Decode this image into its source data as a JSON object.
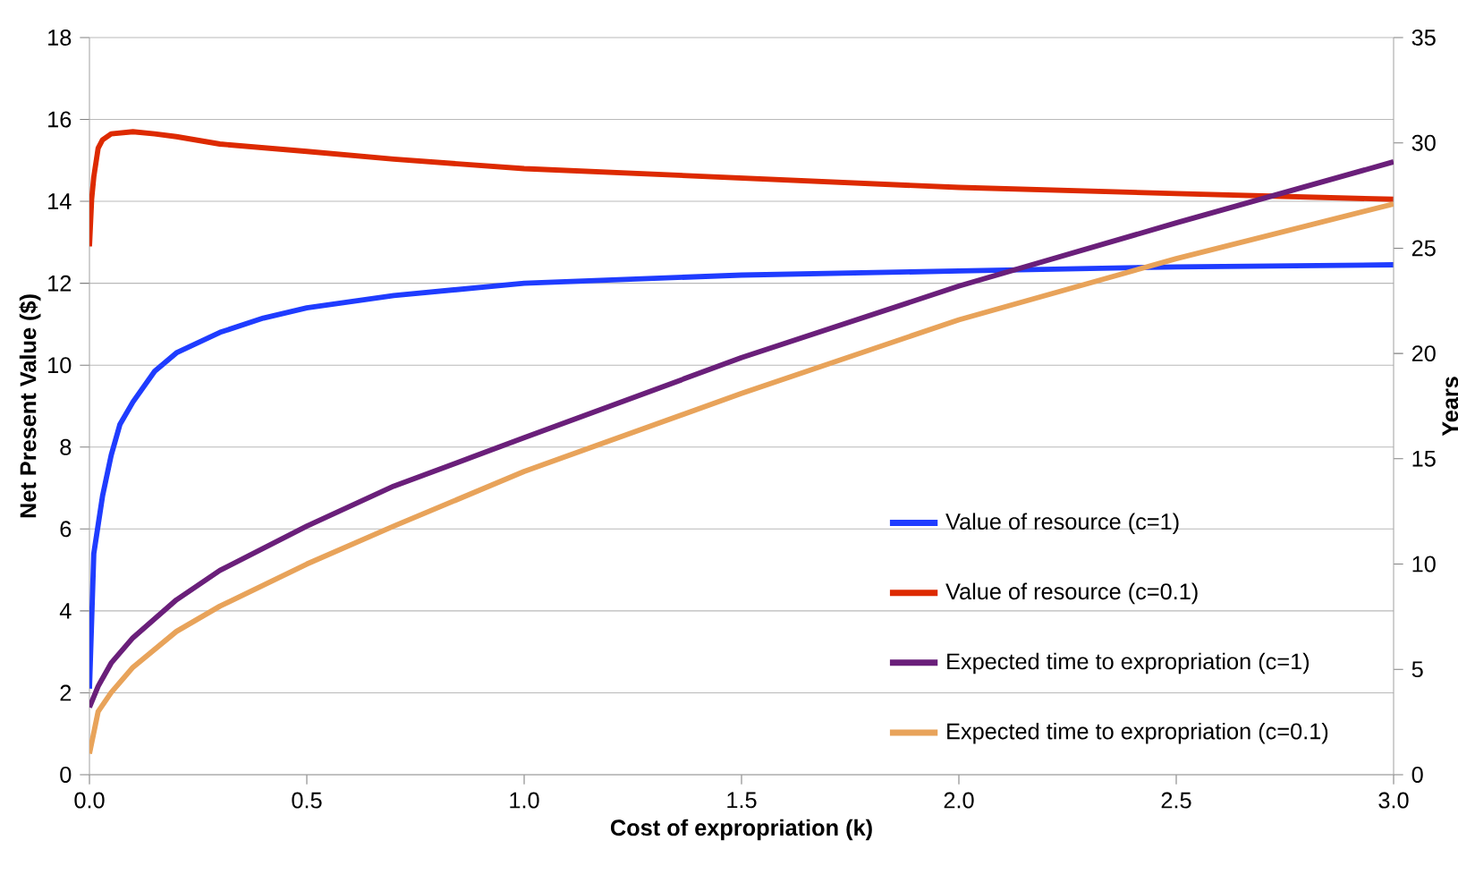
{
  "chart_data": {
    "type": "line",
    "xlabel": "Cost of expropriation (k)",
    "ylabel": "Net Present Value ($)",
    "y2label": "Years",
    "xlim": [
      0,
      3
    ],
    "xticks": [
      {
        "value": 0,
        "label": "0.0"
      },
      {
        "value": 0.5,
        "label": "0.5"
      },
      {
        "value": 1,
        "label": "1.0"
      },
      {
        "value": 1.5,
        "label": "1.5"
      },
      {
        "value": 2,
        "label": "2.0"
      },
      {
        "value": 2.5,
        "label": "2.5"
      },
      {
        "value": 3,
        "label": "3.0"
      }
    ],
    "ylim": [
      0,
      18
    ],
    "yticks": [
      0,
      2,
      4,
      6,
      8,
      10,
      12,
      14,
      16,
      18
    ],
    "y2lim": [
      0,
      35
    ],
    "y2ticks": [
      0,
      5,
      10,
      15,
      20,
      25,
      30,
      35
    ],
    "grid": "y",
    "legend": "bottom right",
    "line_style": "solid",
    "series": [
      {
        "name": "Value of resource (c=1)",
        "color": "#1f3cff",
        "x": [
          0,
          0.01,
          0.02,
          0.03,
          0.05,
          0.07,
          0.1,
          0.15,
          0.2,
          0.3,
          0.4,
          0.5,
          0.7,
          1.0,
          1.5,
          2.0,
          2.5,
          3.0
        ],
        "values": [
          2.1,
          5.4,
          6.1,
          6.8,
          7.8,
          8.55,
          9.1,
          9.85,
          10.3,
          10.8,
          11.15,
          11.4,
          11.7,
          12.0,
          12.2,
          12.3,
          12.4,
          12.45
        ]
      },
      {
        "name": "Value of resource (c=0.1)",
        "color": "#dd2a00",
        "x": [
          0,
          0.005,
          0.01,
          0.02,
          0.03,
          0.05,
          0.1,
          0.15,
          0.2,
          0.3,
          0.5,
          0.7,
          1.0,
          1.5,
          2.0,
          2.5,
          3.0
        ],
        "values": [
          12.9,
          14.05,
          14.6,
          15.3,
          15.5,
          15.65,
          15.7,
          15.65,
          15.58,
          15.4,
          15.22,
          15.03,
          14.8,
          14.57,
          14.34,
          14.19,
          14.05
        ]
      },
      {
        "name": "Expected time to expropriation (c=1)",
        "color": "#6a1f7a",
        "axis": "y2",
        "x": [
          0,
          0.02,
          0.05,
          0.1,
          0.2,
          0.3,
          0.5,
          0.7,
          1.0,
          1.5,
          2.0,
          2.5,
          3.0
        ],
        "values": [
          3.2,
          4.2,
          5.3,
          6.5,
          8.3,
          9.7,
          11.8,
          13.7,
          16.0,
          19.8,
          23.2,
          26.2,
          29.1
        ]
      },
      {
        "name": "Expected time to expropriation (c=0.1)",
        "color": "#e8a35a",
        "axis": "y2",
        "x": [
          0,
          0.02,
          0.05,
          0.1,
          0.2,
          0.3,
          0.5,
          0.7,
          1.0,
          1.5,
          2.0,
          2.5,
          3.0
        ],
        "values": [
          1.0,
          3.0,
          3.9,
          5.1,
          6.8,
          8.0,
          10.0,
          11.8,
          14.4,
          18.1,
          21.6,
          24.5,
          27.1
        ]
      }
    ]
  }
}
